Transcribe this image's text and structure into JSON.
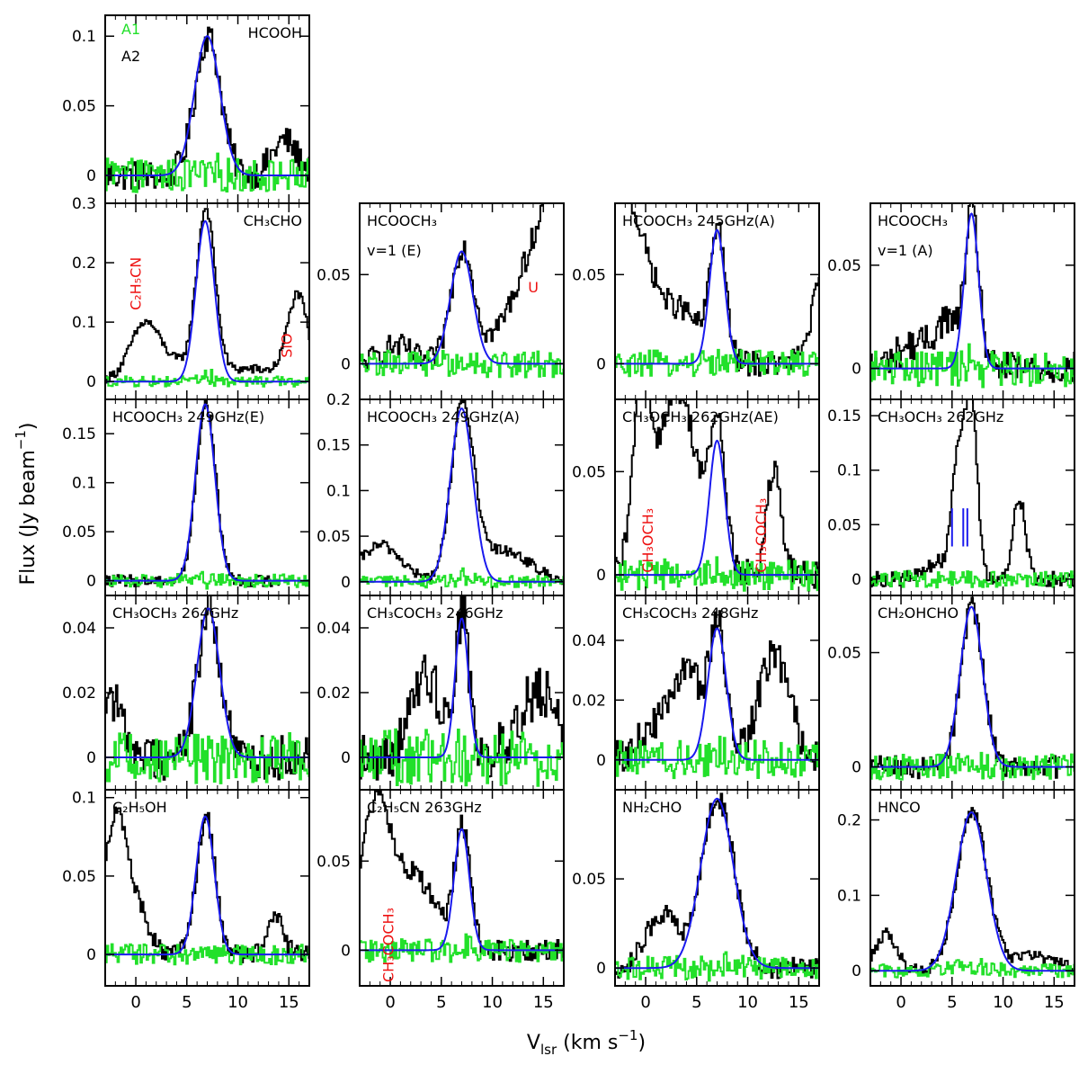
{
  "axis_text": {
    "x_label_main": "V",
    "x_label_sub": "lsr",
    "x_label_unit_open": " (km s",
    "x_label_exp": "−1",
    "x_label_close": ")",
    "y_label_main": "Flux (Jy beam",
    "y_label_exp": "−1",
    "y_label_close": ")"
  },
  "legend": {
    "a1": "A1",
    "a2": "A2"
  },
  "colors": {
    "a1": "#22e02a",
    "a2": "#000000",
    "fit": "#1a1aee",
    "annotation": "#ee1111",
    "axes": "#000000"
  },
  "chart_data": {
    "type": "line",
    "xlabel": "Vlsr (km s−1)",
    "ylabel": "Flux (Jy beam−1)",
    "xlim": [
      -3,
      17
    ],
    "xticks": [
      0,
      5,
      10,
      15
    ],
    "xticklabels": [
      "0",
      "5",
      "10",
      "15"
    ],
    "legend_entries": [
      "A1",
      "A2"
    ],
    "series_kinds": [
      "A1 spectrum (green)",
      "A2 spectrum (black)",
      "Gaussian fit (blue)"
    ],
    "panels": [
      {
        "id": "p-hcooh",
        "title": "HCOOH",
        "row": 0,
        "col": 0,
        "ylim": [
          -0.02,
          0.115
        ],
        "yticks": [
          0,
          0.05,
          0.1
        ],
        "yticklabels": [
          "0",
          "0.05",
          "0.1"
        ],
        "fit": {
          "peak": 0.1,
          "center": 7.0,
          "sigma": 1.25
        },
        "a2_extra": [
          [
            14.5,
            1.2,
            0.025
          ]
        ],
        "noise": 0.011,
        "annotations": []
      },
      {
        "id": "p-ch3cho",
        "title": "CH₃CHO",
        "row": 1,
        "col": 0,
        "ylim": [
          -0.03,
          0.3
        ],
        "yticks": [
          0,
          0.1,
          0.2,
          0.3
        ],
        "yticklabels": [
          "0",
          "0.1",
          "0.2",
          "0.3"
        ],
        "fit": {
          "peak": 0.27,
          "center": 6.8,
          "sigma": 0.9
        },
        "a2_extra": [
          [
            0.8,
            1.4,
            0.08
          ],
          [
            15.8,
            1.0,
            0.14
          ],
          [
            3.5,
            3.0,
            0.03
          ],
          [
            11.5,
            3.0,
            0.02
          ]
        ],
        "noise": 0.008,
        "annotations": [
          {
            "text": "C₂H₅CN",
            "x": 0.5,
            "y": 0.12,
            "rotate": true
          },
          {
            "text": "SiO",
            "x": 15.3,
            "y": 0.04,
            "rotate": true
          }
        ]
      },
      {
        "id": "p-hcooch3-v1e",
        "title": "HCOOCH₃",
        "subtitle": "v=1  (E)",
        "row": 1,
        "col": 1,
        "ylim": [
          -0.02,
          0.09
        ],
        "yticks": [
          0,
          0.05
        ],
        "yticklabels": [
          "0",
          "0.05"
        ],
        "fit": {
          "peak": 0.063,
          "center": 7.0,
          "sigma": 1.1
        },
        "a2_extra": [
          [
            18.0,
            4.0,
            0.12
          ],
          [
            0.5,
            1.5,
            0.01
          ]
        ],
        "noise": 0.007,
        "annotations": [
          {
            "text": "U",
            "x": 13.5,
            "y": 0.04,
            "rotate": false
          }
        ]
      },
      {
        "id": "p-hcooch3-245a",
        "title": "HCOOCH₃ 245GHz(A)",
        "row": 1,
        "col": 2,
        "ylim": [
          -0.02,
          0.09
        ],
        "yticks": [
          0,
          0.05
        ],
        "yticklabels": [
          "0",
          "0.05"
        ],
        "fit": {
          "peak": 0.075,
          "center": 7.0,
          "sigma": 0.75
        },
        "a2_extra": [
          [
            -4.0,
            3.5,
            0.12
          ],
          [
            17.5,
            1.2,
            0.05
          ],
          [
            4.0,
            1.5,
            0.02
          ]
        ],
        "noise": 0.007,
        "annotations": []
      },
      {
        "id": "p-hcooch3-v1a",
        "title": "HCOOCH₃",
        "subtitle": "v=1  (A)",
        "row": 1,
        "col": 3,
        "ylim": [
          -0.015,
          0.08
        ],
        "yticks": [
          0,
          0.05
        ],
        "yticklabels": [
          "0",
          "0.05"
        ],
        "fit": {
          "peak": 0.075,
          "center": 6.9,
          "sigma": 0.7
        },
        "a2_extra": [
          [
            4.5,
            1.0,
            0.02
          ],
          [
            1.5,
            2.0,
            0.012
          ]
        ],
        "noise": 0.008,
        "annotations": []
      },
      {
        "id": "p-hcooch3-249e",
        "title": "HCOOCH₃ 249GHz(E)",
        "row": 2,
        "col": 0,
        "ylim": [
          -0.015,
          0.185
        ],
        "yticks": [
          0,
          0.05,
          0.1,
          0.15
        ],
        "yticklabels": [
          "0",
          "0.05",
          "0.1",
          "0.15"
        ],
        "fit": {
          "peak": 0.18,
          "center": 6.8,
          "sigma": 0.95
        },
        "a2_extra": [],
        "noise": 0.006,
        "a2_xmax": 14.0,
        "annotations": []
      },
      {
        "id": "p-hcooch3-249a",
        "title": "HCOOCH₃ 249GHz(A)",
        "row": 2,
        "col": 1,
        "ylim": [
          -0.015,
          0.2
        ],
        "yticks": [
          0,
          0.05,
          0.1,
          0.15,
          0.2
        ],
        "yticklabels": [
          "0",
          "0.05",
          "0.1",
          "0.15",
          "0.2"
        ],
        "fit": {
          "peak": 0.19,
          "center": 7.0,
          "sigma": 1.1
        },
        "a2_extra": [
          [
            -1.0,
            2.0,
            0.04
          ],
          [
            11.0,
            2.5,
            0.035
          ]
        ],
        "noise": 0.006,
        "annotations": []
      },
      {
        "id": "p-ch3och3-262ae",
        "title": "CH₃OCH₃ 262GHz(AE)",
        "row": 2,
        "col": 2,
        "ylim": [
          -0.01,
          0.085
        ],
        "yticks": [
          0,
          0.05
        ],
        "yticklabels": [
          "0",
          "0.05"
        ],
        "fit": {
          "peak": 0.065,
          "center": 7.0,
          "sigma": 0.75
        },
        "a2_extra": [
          [
            -0.5,
            0.8,
            0.08
          ],
          [
            3.0,
            2.0,
            0.09
          ],
          [
            12.5,
            0.7,
            0.05
          ]
        ],
        "noise": 0.007,
        "annotations": [
          {
            "text": "CH₃OCH₃",
            "x": 0.7,
            "y": 0.001,
            "rotate": true
          },
          {
            "text": "CH₃COCH₃",
            "x": 11.8,
            "y": 0.001,
            "rotate": true
          }
        ]
      },
      {
        "id": "p-ch3och3-262",
        "title": "CH₃OCH₃      262GHz",
        "row": 2,
        "col": 3,
        "ylim": [
          -0.015,
          0.165
        ],
        "yticks": [
          0,
          0.05,
          0.1,
          0.15
        ],
        "yticklabels": [
          "0",
          "0.05",
          "0.1",
          "0.15"
        ],
        "fit": null,
        "a2_extra": [
          [
            5.5,
            0.6,
            0.11
          ],
          [
            6.8,
            0.6,
            0.16
          ],
          [
            11.5,
            0.6,
            0.075
          ],
          [
            3.5,
            1.2,
            0.015
          ]
        ],
        "noise": 0.007,
        "annotations": [],
        "ticks_at": [
          5.0,
          6.1,
          6.5
        ]
      },
      {
        "id": "p-ch3och3-264",
        "title": "CH₃OCH₃      264GHz",
        "row": 3,
        "col": 0,
        "ylim": [
          -0.01,
          0.05
        ],
        "yticks": [
          0,
          0.02,
          0.04
        ],
        "yticklabels": [
          "0",
          "0.02",
          "0.04"
        ],
        "fit": {
          "peak": 0.046,
          "center": 7.1,
          "sigma": 1.1
        },
        "a2_extra": [
          [
            -3.0,
            1.5,
            0.02
          ]
        ],
        "noise": 0.007,
        "annotations": []
      },
      {
        "id": "p-ch3coch3-246",
        "title": "CH₃COCH₃      246GHz",
        "row": 3,
        "col": 1,
        "ylim": [
          -0.01,
          0.05
        ],
        "yticks": [
          0,
          0.02,
          0.04
        ],
        "yticklabels": [
          "0",
          "0.02",
          "0.04"
        ],
        "fit": {
          "peak": 0.043,
          "center": 7.0,
          "sigma": 0.65
        },
        "a2_extra": [
          [
            3.5,
            1.5,
            0.025
          ],
          [
            14.5,
            2.0,
            0.02
          ]
        ],
        "noise": 0.008,
        "annotations": []
      },
      {
        "id": "p-ch3coch3-248",
        "title": "CH₃COCH₃      248GHz",
        "row": 3,
        "col": 2,
        "ylim": [
          -0.01,
          0.055
        ],
        "yticks": [
          0,
          0.02,
          0.04
        ],
        "yticklabels": [
          "0",
          "0.02",
          "0.04"
        ],
        "fit": {
          "peak": 0.044,
          "center": 7.0,
          "sigma": 0.9
        },
        "a2_extra": [
          [
            4.0,
            1.2,
            0.03
          ],
          [
            12.5,
            1.5,
            0.035
          ],
          [
            1.0,
            1.5,
            0.012
          ]
        ],
        "noise": 0.006,
        "annotations": []
      },
      {
        "id": "p-ch2ohcho",
        "title": "CH₂OHCHO",
        "row": 3,
        "col": 3,
        "ylim": [
          -0.01,
          0.075
        ],
        "yticks": [
          0,
          0.05
        ],
        "yticklabels": [
          "0",
          "0.05"
        ],
        "fit": {
          "peak": 0.07,
          "center": 6.9,
          "sigma": 1.1
        },
        "a2_extra": [],
        "noise": 0.005,
        "a2_xmax": 15.5,
        "annotations": []
      },
      {
        "id": "p-c2h5oh",
        "title": "C₂H₅OH",
        "row": 4,
        "col": 0,
        "ylim": [
          -0.02,
          0.105
        ],
        "yticks": [
          0,
          0.05,
          0.1
        ],
        "yticklabels": [
          "0",
          "0.05",
          "0.1"
        ],
        "fit": {
          "peak": 0.088,
          "center": 6.8,
          "sigma": 0.9
        },
        "a2_extra": [
          [
            -2.0,
            1.2,
            0.09
          ],
          [
            0.5,
            1.0,
            0.02
          ],
          [
            13.5,
            0.8,
            0.025
          ]
        ],
        "noise": 0.006,
        "annotations": []
      },
      {
        "id": "p-c2h5cn-263",
        "title": "C₂H₅CN 263GHz",
        "row": 4,
        "col": 1,
        "ylim": [
          -0.02,
          0.09
        ],
        "yticks": [
          0,
          0.05
        ],
        "yticklabels": [
          "0",
          "0.05"
        ],
        "fit": {
          "peak": 0.068,
          "center": 7.0,
          "sigma": 0.75
        },
        "a2_extra": [
          [
            -1.5,
            1.5,
            0.08
          ],
          [
            2.5,
            2.0,
            0.04
          ]
        ],
        "noise": 0.006,
        "annotations": [
          {
            "text": "CH₃COCH₃",
            "x": 0.3,
            "y": -0.018,
            "rotate": true
          }
        ]
      },
      {
        "id": "p-nh2cho",
        "title": "NH₂CHO",
        "row": 4,
        "col": 2,
        "ylim": [
          -0.01,
          0.1
        ],
        "yticks": [
          0,
          0.05
        ],
        "yticklabels": [
          "0",
          "0.05"
        ],
        "fit": {
          "peak": 0.095,
          "center": 7.0,
          "sigma": 1.6
        },
        "a2_extra": [
          [
            1.5,
            1.5,
            0.03
          ]
        ],
        "noise": 0.006,
        "annotations": []
      },
      {
        "id": "p-hnco",
        "title": "HNCO",
        "row": 4,
        "col": 3,
        "ylim": [
          -0.02,
          0.24
        ],
        "yticks": [
          0,
          0.1,
          0.2
        ],
        "yticklabels": [
          "0",
          "0.1",
          "0.2"
        ],
        "fit": {
          "peak": 0.21,
          "center": 6.9,
          "sigma": 1.5
        },
        "a2_extra": [
          [
            -1.5,
            1.0,
            0.05
          ],
          [
            13.0,
            2.0,
            0.02
          ]
        ],
        "noise": 0.008,
        "annotations": []
      }
    ]
  }
}
